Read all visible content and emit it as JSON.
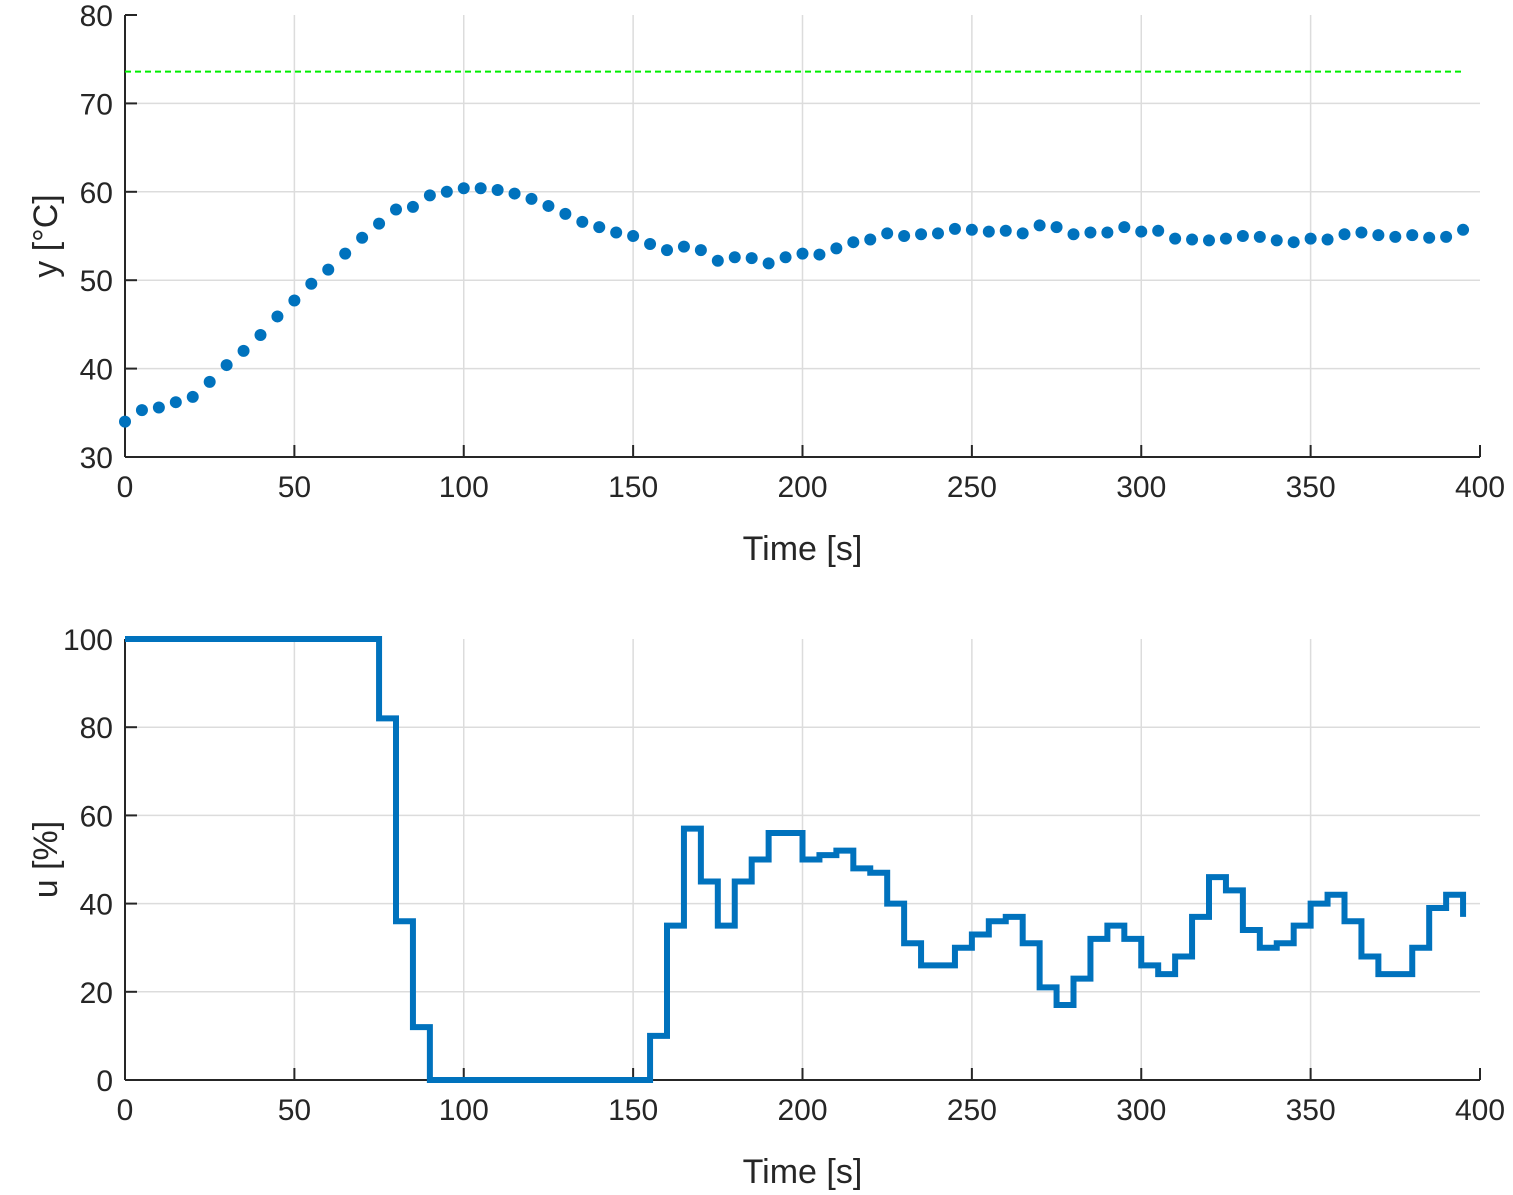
{
  "chart_data": [
    {
      "type": "scatter",
      "title": "",
      "xlabel": "Time [s]",
      "ylabel": "y [°C]",
      "xlim": [
        0,
        400
      ],
      "ylim": [
        30,
        80
      ],
      "xticks": [
        0,
        50,
        100,
        150,
        200,
        250,
        300,
        350,
        400
      ],
      "yticks": [
        30,
        40,
        50,
        60,
        70,
        80
      ],
      "grid": true,
      "colors": {
        "series": "#0072bd",
        "setpoint": "#00ee00"
      },
      "setpoint": 73.6,
      "series": [
        {
          "x": [
            0,
            5,
            10,
            15,
            20,
            25,
            30,
            35,
            40,
            45,
            50,
            55,
            60,
            65,
            70,
            75,
            80,
            85,
            90,
            95,
            100,
            105,
            110,
            115,
            120,
            125,
            130,
            135,
            140,
            145,
            150,
            155,
            160,
            165,
            170,
            175,
            180,
            185,
            190,
            195,
            200,
            205,
            210,
            215,
            220,
            225,
            230,
            235,
            240,
            245,
            250,
            255,
            260,
            265,
            270,
            275,
            280,
            285,
            290,
            295,
            300,
            305,
            310,
            315,
            320,
            325,
            330,
            335,
            340,
            345,
            350,
            355,
            360,
            365,
            370,
            375,
            380,
            385,
            390,
            395
          ],
          "y": [
            34.0,
            35.3,
            35.6,
            36.2,
            36.8,
            38.5,
            40.4,
            42.0,
            43.8,
            45.9,
            47.7,
            49.6,
            51.2,
            53.0,
            54.8,
            56.4,
            58.0,
            58.3,
            59.6,
            60.0,
            60.4,
            60.4,
            60.2,
            59.8,
            59.2,
            58.4,
            57.5,
            56.6,
            56.0,
            55.4,
            55.0,
            54.1,
            53.4,
            53.8,
            53.4,
            52.2,
            52.6,
            52.5,
            51.9,
            52.6,
            53.0,
            52.9,
            53.6,
            54.3,
            54.6,
            55.3,
            55.0,
            55.2,
            55.3,
            55.8,
            55.7,
            55.5,
            55.6,
            55.3,
            56.2,
            56.0,
            55.2,
            55.4,
            55.4,
            56.0,
            55.5,
            55.6,
            54.7,
            54.6,
            54.5,
            54.7,
            55.0,
            54.9,
            54.5,
            54.3,
            54.7,
            54.6,
            55.2,
            55.4,
            55.1,
            54.9,
            55.1,
            54.8,
            54.9,
            55.7
          ]
        }
      ]
    },
    {
      "type": "line",
      "title": "",
      "xlabel": "Time [s]",
      "ylabel": "u [%]",
      "xlim": [
        0,
        400
      ],
      "ylim": [
        0,
        100
      ],
      "xticks": [
        0,
        50,
        100,
        150,
        200,
        250,
        300,
        350,
        400
      ],
      "yticks": [
        0,
        20,
        40,
        60,
        80,
        100
      ],
      "grid": true,
      "step": true,
      "colors": {
        "series": "#0072bd"
      },
      "series": [
        {
          "x": [
            0,
            75,
            80,
            85,
            90,
            95,
            100,
            105,
            110,
            115,
            120,
            125,
            130,
            135,
            140,
            145,
            150,
            155,
            160,
            165,
            170,
            175,
            180,
            185,
            190,
            195,
            200,
            205,
            210,
            215,
            220,
            225,
            230,
            235,
            240,
            245,
            250,
            255,
            260,
            265,
            270,
            275,
            280,
            285,
            290,
            295,
            300,
            305,
            310,
            315,
            320,
            325,
            330,
            335,
            340,
            345,
            350,
            355,
            360,
            365,
            370,
            375,
            380,
            385,
            390,
            395
          ],
          "y": [
            100,
            82,
            36,
            12,
            0,
            0,
            0,
            0,
            0,
            0,
            0,
            0,
            0,
            0,
            0,
            0,
            0,
            10,
            35,
            57,
            45,
            35,
            45,
            50,
            56,
            56,
            50,
            51,
            52,
            48,
            47,
            40,
            31,
            26,
            26,
            30,
            33,
            36,
            37,
            31,
            21,
            17,
            23,
            32,
            35,
            32,
            26,
            24,
            28,
            37,
            46,
            43,
            34,
            30,
            31,
            35,
            40,
            42,
            36,
            28,
            24,
            24,
            30,
            39,
            42,
            37
          ]
        }
      ]
    }
  ]
}
